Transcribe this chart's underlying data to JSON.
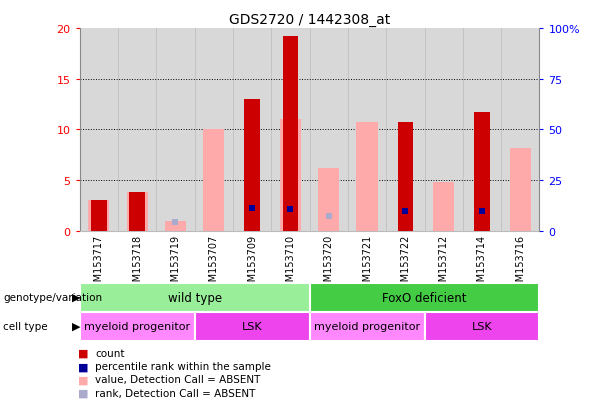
{
  "title": "GDS2720 / 1442308_at",
  "samples": [
    "GSM153717",
    "GSM153718",
    "GSM153719",
    "GSM153707",
    "GSM153709",
    "GSM153710",
    "GSM153720",
    "GSM153721",
    "GSM153722",
    "GSM153712",
    "GSM153714",
    "GSM153716"
  ],
  "count": [
    3.0,
    3.8,
    0.0,
    0.0,
    13.0,
    19.2,
    0.0,
    0.0,
    10.7,
    0.0,
    11.7,
    0.0
  ],
  "percentile_rank": [
    null,
    null,
    null,
    null,
    11.5,
    11.0,
    null,
    null,
    10.0,
    null,
    9.9,
    null
  ],
  "absent_value": [
    3.0,
    3.8,
    1.0,
    10.0,
    0.0,
    11.0,
    6.2,
    10.7,
    0.0,
    4.8,
    0.0,
    8.2
  ],
  "absent_rank": [
    5.5,
    5.6,
    4.3,
    null,
    null,
    null,
    7.5,
    null,
    6.3,
    null,
    null,
    null
  ],
  "ylim_left": [
    0,
    20
  ],
  "ylim_right": [
    0,
    100
  ],
  "yticks_left": [
    0,
    5,
    10,
    15,
    20
  ],
  "yticks_right": [
    0,
    25,
    50,
    75,
    100
  ],
  "ytick_labels_right": [
    "0",
    "25",
    "50",
    "75",
    "100%"
  ],
  "color_count": "#cc0000",
  "color_percentile": "#000099",
  "color_absent_value": "#ffaaaa",
  "color_absent_rank": "#aaaacc",
  "bg_color": "#d8d8d8",
  "genotype_groups": [
    {
      "label": "wild type",
      "start": 0,
      "end": 6,
      "color": "#99ee99"
    },
    {
      "label": "FoxO deficient",
      "start": 6,
      "end": 12,
      "color": "#44cc44"
    }
  ],
  "cell_type_groups": [
    {
      "label": "myeloid progenitor",
      "start": 0,
      "end": 3,
      "color": "#ff88ff"
    },
    {
      "label": "LSK",
      "start": 3,
      "end": 6,
      "color": "#ee44ee"
    },
    {
      "label": "myeloid progenitor",
      "start": 6,
      "end": 9,
      "color": "#ff88ff"
    },
    {
      "label": "LSK",
      "start": 9,
      "end": 12,
      "color": "#ee44ee"
    }
  ],
  "legend_items": [
    {
      "label": "count",
      "color": "#cc0000"
    },
    {
      "label": "percentile rank within the sample",
      "color": "#000099"
    },
    {
      "label": "value, Detection Call = ABSENT",
      "color": "#ffaaaa"
    },
    {
      "label": "rank, Detection Call = ABSENT",
      "color": "#aaaacc"
    }
  ],
  "bar_width": 0.4,
  "absent_bar_width": 0.55
}
